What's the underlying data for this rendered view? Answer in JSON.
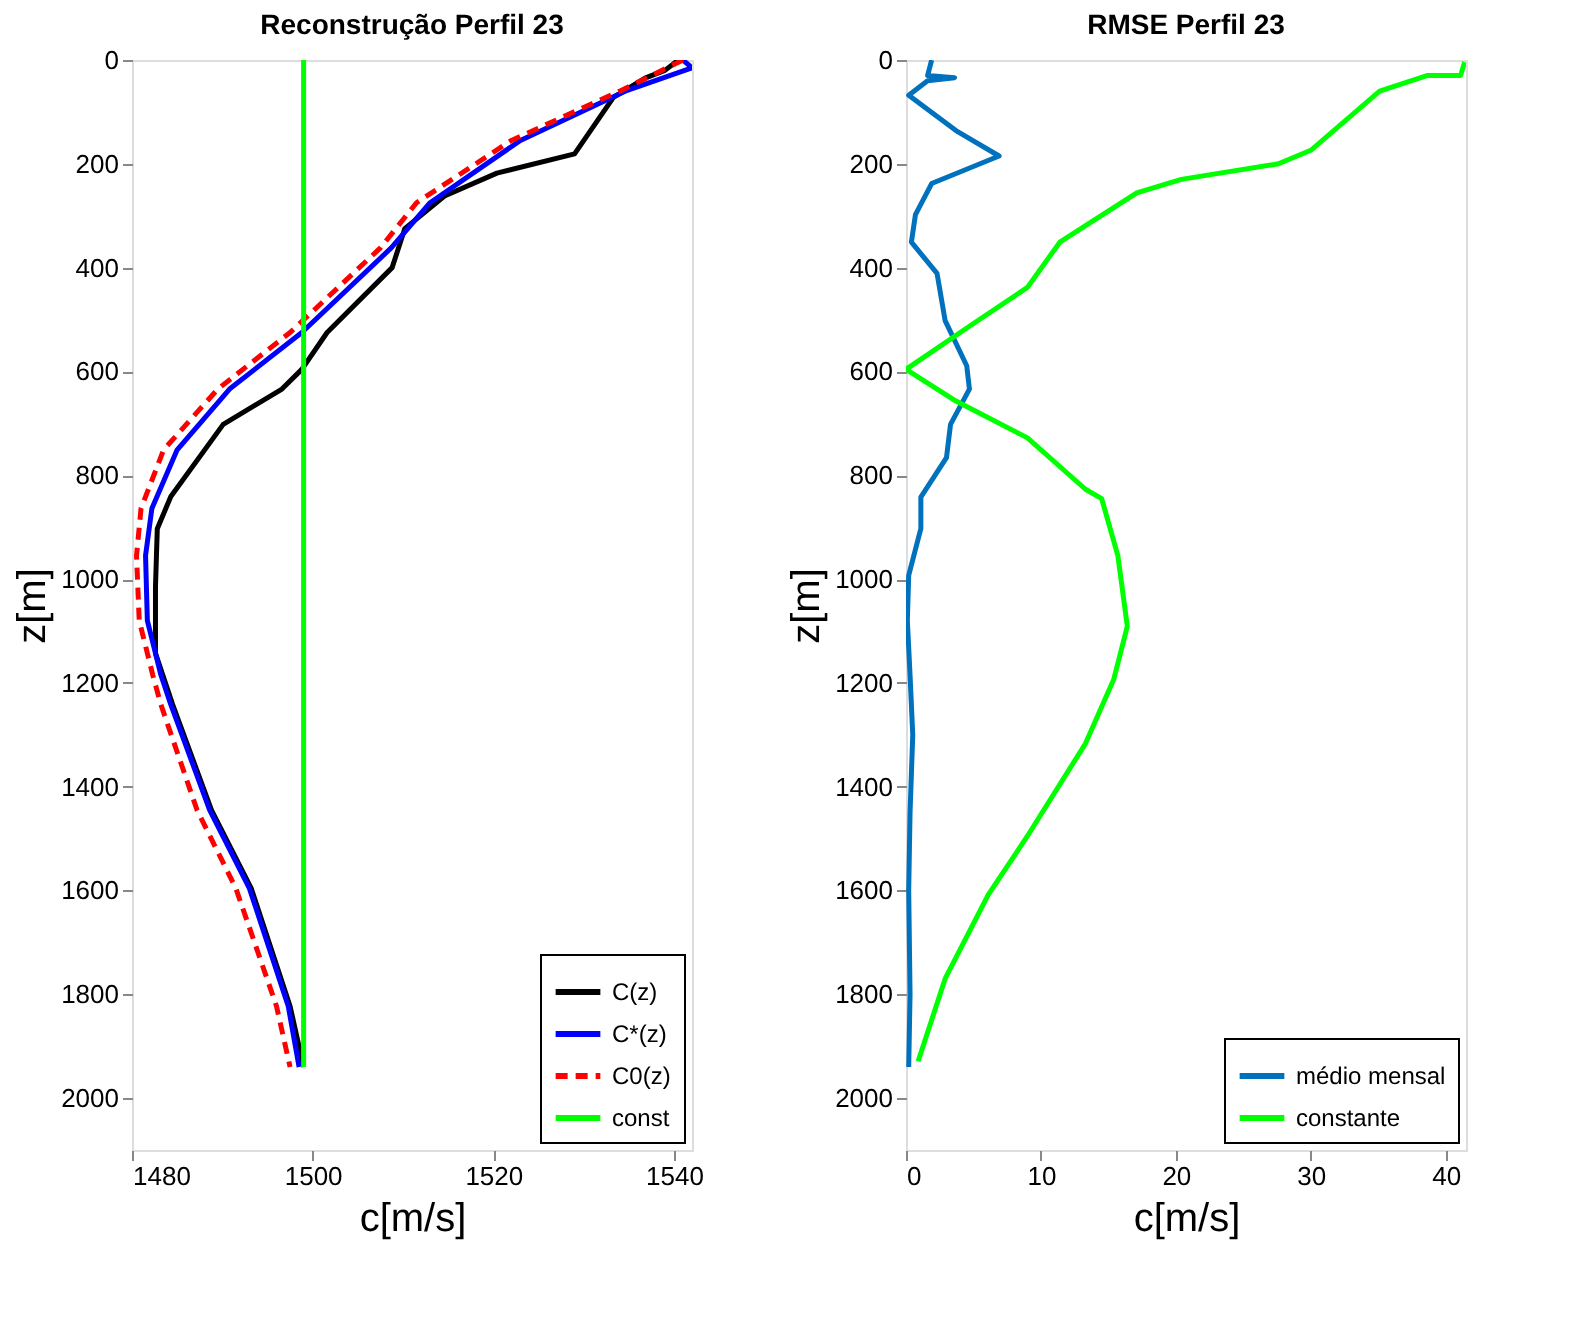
{
  "chart_data": [
    {
      "type": "line",
      "title": "Reconstrução Perfil 23",
      "xlabel": "c[m/s]",
      "ylabel": "z[m]",
      "xlim": [
        1480,
        1542
      ],
      "xticks": [
        1480,
        1500,
        1520,
        1540
      ],
      "ylim": [
        2100,
        0
      ],
      "yticks": [
        0,
        200,
        400,
        600,
        800,
        1000,
        1200,
        1400,
        1600,
        1800,
        2000
      ],
      "grid": false,
      "legend": "bottom right",
      "series": [
        {
          "name": "C(z)",
          "color": "#000000",
          "line_style": "solid",
          "x": [
            1540.5,
            1539,
            1536.8,
            1533.3,
            1529,
            1520.4,
            1514.6,
            1510.2,
            1508.8,
            1501.6,
            1498.8,
            1496.6,
            1490.1,
            1484.3,
            1482.8,
            1482.6,
            1482.6,
            1484.5,
            1488.8,
            1493.2,
            1497.5,
            1499
          ],
          "values": [
            0,
            20,
            35,
            72,
            181,
            218,
            262,
            325,
            400,
            525,
            596,
            634,
            702,
            841,
            903,
            1015,
            1143,
            1242,
            1445,
            1596,
            1823,
            1940
          ]
        },
        {
          "name": "C*(z)",
          "color": "#0000ff",
          "line_style": "solid",
          "x": [
            1541,
            1542,
            1534.6,
            1523,
            1513,
            1508.7,
            1498.8,
            1490.8,
            1485,
            1482.2,
            1481.5,
            1481.7,
            1483.2,
            1484.3,
            1488.6,
            1493,
            1497.3,
            1498.5
          ],
          "values": [
            0,
            15,
            60,
            155,
            275,
            362,
            525,
            634,
            751,
            864,
            955,
            1080,
            1185,
            1242,
            1445,
            1596,
            1823,
            1940
          ]
        },
        {
          "name": "C0(z)",
          "color": "#ff0000",
          "line_style": "dashed",
          "x": [
            1541,
            1534,
            1522,
            1511.5,
            1507.5,
            1497.5,
            1489.5,
            1483.5,
            1481,
            1480.5,
            1480.8,
            1482.3,
            1483.2,
            1487.2,
            1491.5,
            1496,
            1497.5
          ],
          "values": [
            0,
            60,
            155,
            275,
            362,
            525,
            634,
            751,
            864,
            955,
            1080,
            1185,
            1242,
            1445,
            1596,
            1823,
            1940
          ]
        },
        {
          "name": "const",
          "color": "#00ff00",
          "line_style": "solid",
          "x": [
            1499,
            1499
          ],
          "values": [
            0,
            1940
          ]
        }
      ]
    },
    {
      "type": "line",
      "title": "RMSE Perfil 23",
      "xlabel": "c[m/s]",
      "ylabel": "z[m]",
      "xlim": [
        0,
        41.5
      ],
      "xticks": [
        0,
        10,
        20,
        30,
        40
      ],
      "ylim": [
        2100,
        0
      ],
      "yticks": [
        0,
        200,
        400,
        600,
        800,
        1000,
        1200,
        1400,
        1600,
        1800,
        2000
      ],
      "grid": false,
      "legend": "bottom right",
      "series": [
        {
          "name": "médio mensal",
          "color": "#0072bd",
          "line_style": "solid",
          "x": [
            1.9,
            1.6,
            3.6,
            1.6,
            0.2,
            3.7,
            6.9,
            1.9,
            0.7,
            0.4,
            2.3,
            2.9,
            4.5,
            4.7,
            3.3,
            3,
            1.1,
            1.1,
            0.2,
            0.1,
            0.3,
            0.5,
            0.3,
            0.2,
            0.3,
            0.2
          ],
          "values": [
            0,
            30,
            34,
            40,
            68,
            136,
            185,
            238,
            298,
            351,
            411,
            502,
            589,
            634,
            702,
            766,
            842,
            903,
            993,
            1080,
            1185,
            1300,
            1450,
            1600,
            1800,
            1940
          ]
        },
        {
          "name": "constante",
          "color": "#00ff00",
          "line_style": "solid",
          "x": [
            41.4,
            41.1,
            38.6,
            35.1,
            30,
            27.6,
            20.4,
            17.1,
            11.4,
            9,
            4.7,
            0,
            3.7,
            9,
            13.3,
            14.5,
            15.7,
            16.4,
            15.4,
            13.3,
            9,
            6.1,
            2.9,
            0.9
          ],
          "values": [
            4,
            30,
            30,
            60,
            174,
            200,
            230,
            256,
            351,
            438,
            513,
            596,
            657,
            728,
            827,
            845,
            955,
            1091,
            1193,
            1317,
            1495,
            1608,
            1770,
            1929
          ]
        }
      ]
    }
  ]
}
